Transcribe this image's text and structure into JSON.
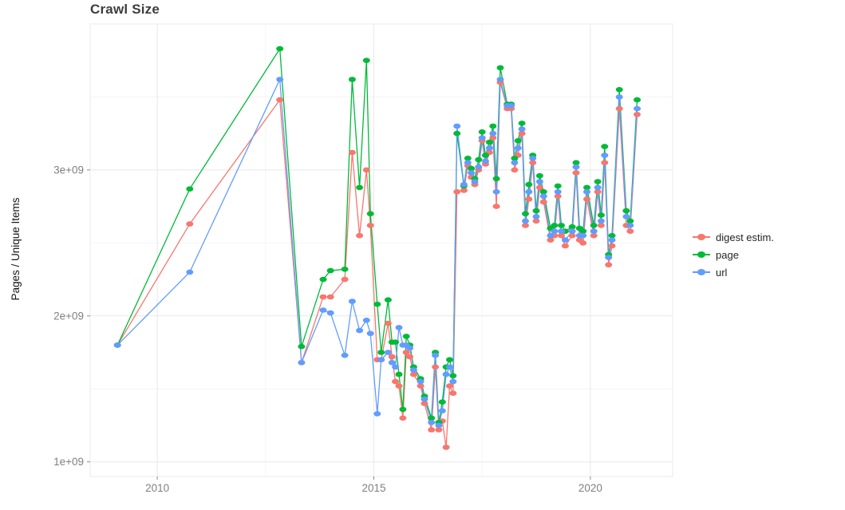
{
  "chart_data": {
    "type": "line",
    "title": "Crawl Size",
    "xlabel": "",
    "ylabel": "Pages / Unique Items",
    "legend_position": "right",
    "grid": true,
    "xlim": [
      2008.45,
      2021.9
    ],
    "ylim": [
      0.9,
      4.0
    ],
    "y_unit": "1e9",
    "x_ticks": [
      {
        "value": 2010,
        "label": "2010"
      },
      {
        "value": 2015,
        "label": "2015"
      },
      {
        "value": 2020,
        "label": "2020"
      }
    ],
    "x_minor_ticks": [
      2012.5,
      2017.5
    ],
    "y_ticks": [
      {
        "value": 1,
        "label": "1e+09"
      },
      {
        "value": 2,
        "label": "2e+09"
      },
      {
        "value": 3,
        "label": "3e+09"
      }
    ],
    "y_minor_ticks": [
      1.5,
      2.5,
      3.5
    ],
    "x": [
      2009.08,
      2010.75,
      2012.83,
      2013.33,
      2013.83,
      2014.0,
      2014.33,
      2014.5,
      2014.67,
      2014.83,
      2014.92,
      2015.08,
      2015.17,
      2015.33,
      2015.42,
      2015.5,
      2015.58,
      2015.67,
      2015.75,
      2015.83,
      2015.92,
      2016.08,
      2016.17,
      2016.33,
      2016.42,
      2016.5,
      2016.58,
      2016.67,
      2016.75,
      2016.83,
      2016.92,
      2017.08,
      2017.17,
      2017.25,
      2017.33,
      2017.42,
      2017.5,
      2017.58,
      2017.67,
      2017.75,
      2017.83,
      2017.92,
      2018.08,
      2018.17,
      2018.25,
      2018.33,
      2018.42,
      2018.5,
      2018.58,
      2018.67,
      2018.75,
      2018.83,
      2018.92,
      2019.08,
      2019.17,
      2019.25,
      2019.33,
      2019.42,
      2019.58,
      2019.67,
      2019.75,
      2019.83,
      2019.92,
      2020.08,
      2020.17,
      2020.25,
      2020.33,
      2020.42,
      2020.5,
      2020.67,
      2020.83,
      2020.92,
      2021.08
    ],
    "series": [
      {
        "name": "digest estim.",
        "color": "#F8766D",
        "values": [
          1.8,
          2.63,
          3.48,
          1.68,
          2.13,
          2.13,
          2.25,
          3.12,
          2.55,
          3.0,
          2.62,
          1.7,
          1.7,
          1.95,
          1.72,
          1.55,
          1.52,
          1.3,
          1.75,
          1.72,
          1.6,
          1.52,
          1.4,
          1.22,
          1.65,
          1.22,
          1.28,
          1.1,
          1.52,
          1.47,
          2.85,
          2.86,
          3.03,
          2.95,
          2.9,
          3.0,
          3.2,
          3.04,
          3.12,
          3.22,
          2.75,
          3.6,
          3.42,
          3.42,
          3.0,
          3.1,
          3.25,
          2.62,
          2.8,
          3.05,
          2.65,
          2.88,
          2.78,
          2.52,
          2.55,
          2.82,
          2.55,
          2.48,
          2.55,
          2.98,
          2.52,
          2.5,
          2.8,
          2.55,
          2.85,
          2.62,
          3.05,
          2.35,
          2.48,
          3.42,
          2.62,
          2.58,
          3.38
        ]
      },
      {
        "name": "page",
        "color": "#00BA38",
        "values": [
          1.8,
          2.87,
          3.83,
          1.79,
          2.25,
          2.31,
          2.32,
          3.62,
          2.88,
          3.75,
          2.7,
          2.08,
          1.75,
          2.11,
          1.82,
          1.82,
          1.6,
          1.36,
          1.86,
          1.8,
          1.65,
          1.57,
          1.45,
          1.3,
          1.75,
          1.27,
          1.41,
          1.65,
          1.7,
          1.59,
          3.25,
          2.89,
          3.08,
          3.01,
          2.94,
          3.07,
          3.26,
          3.1,
          3.19,
          3.3,
          2.94,
          3.7,
          3.45,
          3.45,
          3.08,
          3.2,
          3.32,
          2.7,
          2.9,
          3.1,
          2.72,
          2.96,
          2.85,
          2.6,
          2.62,
          2.89,
          2.62,
          2.58,
          2.61,
          3.05,
          2.6,
          2.58,
          2.88,
          2.62,
          2.92,
          2.69,
          3.16,
          2.42,
          2.55,
          3.55,
          2.72,
          2.65,
          3.48
        ]
      },
      {
        "name": "url",
        "color": "#619CFF",
        "values": [
          1.8,
          2.3,
          3.62,
          1.68,
          2.04,
          2.02,
          1.73,
          2.1,
          1.9,
          1.97,
          1.88,
          1.33,
          1.7,
          1.75,
          1.68,
          1.65,
          1.92,
          1.8,
          1.8,
          1.78,
          1.63,
          1.55,
          1.43,
          1.27,
          1.73,
          1.25,
          1.35,
          1.6,
          1.65,
          1.55,
          3.3,
          2.9,
          3.05,
          2.98,
          2.92,
          3.02,
          3.22,
          3.06,
          3.15,
          3.25,
          2.85,
          3.62,
          3.44,
          3.44,
          3.05,
          3.15,
          3.28,
          2.65,
          2.85,
          3.08,
          2.68,
          2.92,
          2.82,
          2.55,
          2.58,
          2.85,
          2.58,
          2.52,
          2.58,
          3.02,
          2.55,
          2.55,
          2.85,
          2.58,
          2.88,
          2.65,
          3.1,
          2.4,
          2.52,
          3.5,
          2.68,
          2.62,
          3.42
        ]
      }
    ],
    "colors": {
      "grid_major": "#E8E8E8",
      "grid_minor": "#F4F4F4",
      "panel_border": "#EBEBEB",
      "tick_mark": "#8c8c8c",
      "axis_text": "#808080"
    }
  }
}
